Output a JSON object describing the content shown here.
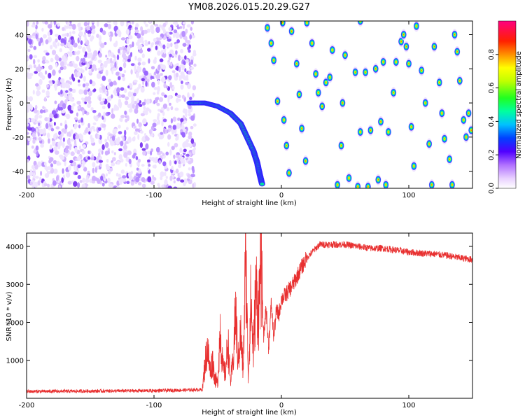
{
  "title": "YM08.2026.015.20.29.G27",
  "chart_data": [
    {
      "type": "heatmap",
      "name": "spectrogram",
      "xlabel": "Height of straight line (km)",
      "ylabel": "Frequency (Hz)",
      "xlim": [
        -200,
        150
      ],
      "ylim": [
        -50,
        48
      ],
      "xticks": [
        -200,
        -100,
        0,
        100
      ],
      "xtick_labels": [
        "-200",
        "-100",
        "0",
        "100"
      ],
      "yticks": [
        -40,
        -20,
        0,
        20,
        40
      ],
      "ytick_labels": [
        "-40",
        "-20",
        "0",
        "20",
        "40"
      ],
      "colorbar": {
        "label": "Normalized spectral amplitude",
        "range": [
          0,
          1
        ],
        "ticks": [
          0,
          0.2,
          0.4,
          0.6,
          0.8
        ],
        "tick_labels": [
          "0.0",
          "0.2",
          "0.4",
          "0.6",
          "0.8"
        ],
        "colors": [
          "#ffffff",
          "#f0e0ff",
          "#c8a0ff",
          "#8a2be2",
          "#3a00ff",
          "#0050ff",
          "#00c8ff",
          "#00ff80",
          "#60ff00",
          "#ffff00",
          "#ff8000",
          "#ff0000",
          "#ff0080"
        ]
      },
      "noise_region": {
        "x_from": -200,
        "x_to": -70
      },
      "signal_track": [
        {
          "x": -72,
          "y": 0
        },
        {
          "x": -60,
          "y": 0
        },
        {
          "x": -50,
          "y": -2
        },
        {
          "x": -40,
          "y": -6
        },
        {
          "x": -32,
          "y": -12
        },
        {
          "x": -27,
          "y": -20
        },
        {
          "x": -22,
          "y": -28
        },
        {
          "x": -19,
          "y": -35
        },
        {
          "x": -17,
          "y": -42
        },
        {
          "x": -15,
          "y": -48
        }
      ],
      "aliased_blobs": [
        {
          "x": -11,
          "y": 44
        },
        {
          "x": -8,
          "y": 35
        },
        {
          "x": -6,
          "y": 25
        },
        {
          "x": -3,
          "y": 1
        },
        {
          "x": 2,
          "y": -10
        },
        {
          "x": 4,
          "y": -25
        },
        {
          "x": 6,
          "y": -41
        },
        {
          "x": 8,
          "y": 42
        },
        {
          "x": 12,
          "y": 23
        },
        {
          "x": 14,
          "y": 5
        },
        {
          "x": 16,
          "y": -15
        },
        {
          "x": 19,
          "y": -34
        },
        {
          "x": 24,
          "y": 35
        },
        {
          "x": 27,
          "y": 17
        },
        {
          "x": 29,
          "y": 6
        },
        {
          "x": 32,
          "y": -2
        },
        {
          "x": 35,
          "y": 12
        },
        {
          "x": 38,
          "y": 15
        },
        {
          "x": 40,
          "y": 31
        },
        {
          "x": 44,
          "y": -48
        },
        {
          "x": 47,
          "y": -25
        },
        {
          "x": 48,
          "y": 0
        },
        {
          "x": 50,
          "y": 28
        },
        {
          "x": 53,
          "y": -44
        },
        {
          "x": 58,
          "y": 18
        },
        {
          "x": 60,
          "y": -49
        },
        {
          "x": 62,
          "y": -17
        },
        {
          "x": 66,
          "y": 18
        },
        {
          "x": 68,
          "y": -49
        },
        {
          "x": 70,
          "y": -16
        },
        {
          "x": 74,
          "y": 20
        },
        {
          "x": 76,
          "y": -45
        },
        {
          "x": 78,
          "y": -11
        },
        {
          "x": 80,
          "y": 24
        },
        {
          "x": 82,
          "y": -48
        },
        {
          "x": 84,
          "y": -17
        },
        {
          "x": 88,
          "y": 6
        },
        {
          "x": 90,
          "y": 24
        },
        {
          "x": 94,
          "y": 36
        },
        {
          "x": 96,
          "y": 40
        },
        {
          "x": 98,
          "y": 33
        },
        {
          "x": 100,
          "y": 23
        },
        {
          "x": 102,
          "y": -14
        },
        {
          "x": 104,
          "y": -37
        },
        {
          "x": 106,
          "y": 45
        },
        {
          "x": 110,
          "y": 19
        },
        {
          "x": 113,
          "y": 0
        },
        {
          "x": 116,
          "y": -24
        },
        {
          "x": 118,
          "y": -48
        },
        {
          "x": 120,
          "y": 33
        },
        {
          "x": 124,
          "y": 12
        },
        {
          "x": 126,
          "y": -6
        },
        {
          "x": 128,
          "y": -21
        },
        {
          "x": 132,
          "y": -33
        },
        {
          "x": 134,
          "y": -48
        },
        {
          "x": 136,
          "y": 40
        },
        {
          "x": 138,
          "y": 30
        },
        {
          "x": 140,
          "y": 13
        },
        {
          "x": 143,
          "y": -10
        },
        {
          "x": 145,
          "y": -20
        },
        {
          "x": 147,
          "y": -6
        },
        {
          "x": 149,
          "y": -16
        },
        {
          "x": 1,
          "y": 47
        },
        {
          "x": 20,
          "y": 47
        },
        {
          "x": 62,
          "y": 48
        }
      ]
    },
    {
      "type": "line",
      "name": "snr",
      "xlabel": "Height of straight line (km)",
      "ylabel": "SNR (10 * v/v)",
      "xlim": [
        -200,
        150
      ],
      "ylim": [
        0,
        4350
      ],
      "xticks": [
        -200,
        -100,
        0,
        100
      ],
      "xtick_labels": [
        "-200",
        "-100",
        "0",
        "100"
      ],
      "yticks": [
        1000,
        2000,
        3000,
        4000
      ],
      "ytick_labels": [
        "1000",
        "2000",
        "3000",
        "4000"
      ],
      "color": "#e83030",
      "series": [
        {
          "name": "SNR",
          "x": [
            -200,
            -150,
            -100,
            -70,
            -62,
            -60,
            -58,
            -56,
            -54,
            -52,
            -50,
            -48,
            -46,
            -44,
            -42,
            -40,
            -38,
            -36,
            -34,
            -32,
            -30,
            -28,
            -26,
            -24,
            -22,
            -20,
            -18,
            -16,
            -14,
            -12,
            -10,
            -8,
            -6,
            -4,
            -2,
            0,
            5,
            10,
            15,
            20,
            25,
            30,
            40,
            50,
            60,
            70,
            80,
            90,
            100,
            110,
            120,
            130,
            140,
            150
          ],
          "y": [
            180,
            190,
            200,
            220,
            230,
            900,
            1350,
            700,
            1000,
            500,
            400,
            1900,
            800,
            650,
            1500,
            450,
            900,
            2300,
            1000,
            1700,
            700,
            3900,
            550,
            2600,
            1200,
            2900,
            2200,
            3700,
            1600,
            2400,
            1300,
            2500,
            1600,
            2300,
            2200,
            2600,
            2800,
            3050,
            3400,
            3700,
            3880,
            4050,
            4050,
            4050,
            4000,
            3950,
            3950,
            3900,
            3850,
            3820,
            3800,
            3760,
            3700,
            3650
          ]
        }
      ]
    }
  ]
}
